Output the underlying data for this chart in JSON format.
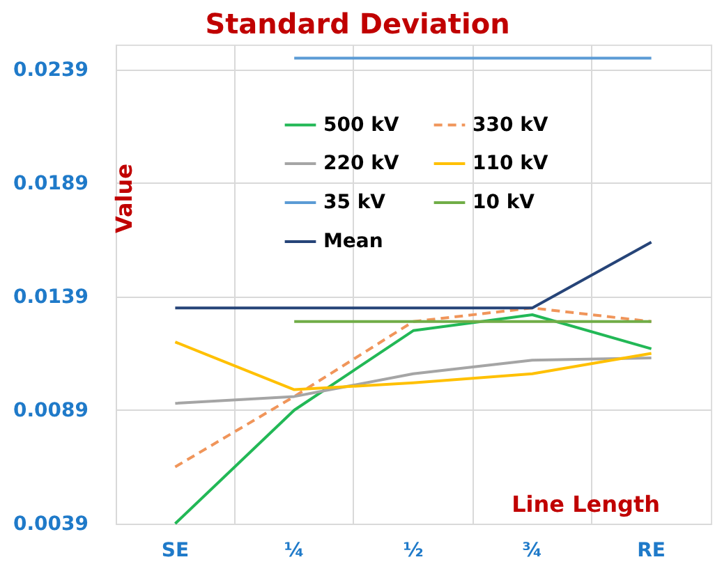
{
  "chart_data": {
    "type": "line",
    "title": "Standard Deviation",
    "xlabel": "Line Length",
    "ylabel": "Value",
    "categories": [
      "SE",
      "¼",
      "½",
      "¾",
      "RE"
    ],
    "series": [
      {
        "name": "500 kV",
        "color": "#22b856",
        "values": [
          0.0039,
          0.0089,
          0.0124,
          0.0131,
          0.0116
        ]
      },
      {
        "name": "330 kV",
        "color": "#f0955a",
        "line_style": "dashed",
        "values": [
          0.0064,
          0.0095,
          0.0128,
          0.0134,
          0.0128
        ]
      },
      {
        "name": "220 kV",
        "color": "#a5a5a5",
        "values": [
          0.0092,
          0.0095,
          0.0105,
          0.0111,
          0.0112
        ]
      },
      {
        "name": "110 kV",
        "color": "#ffc000",
        "values": [
          0.0119,
          0.0098,
          0.0101,
          0.0105,
          0.0114
        ]
      },
      {
        "name": "35 kV",
        "color": "#5b9bd5",
        "values": [
          null,
          0.0244,
          0.0244,
          0.0244,
          0.0244
        ]
      },
      {
        "name": "10 kV",
        "color": "#70ad47",
        "values": [
          null,
          0.0128,
          0.0128,
          0.0128,
          0.0128
        ]
      },
      {
        "name": "Mean",
        "color": "#264478",
        "values": [
          0.0134,
          0.0134,
          0.0134,
          0.0134,
          0.0163
        ]
      }
    ],
    "ylim": [
      0.0039,
      0.025
    ],
    "yticks": [
      0.0039,
      0.0089,
      0.0139,
      0.0189,
      0.0239
    ],
    "grid": true,
    "legend": "top right",
    "marker": "none",
    "line_style": "solid"
  }
}
